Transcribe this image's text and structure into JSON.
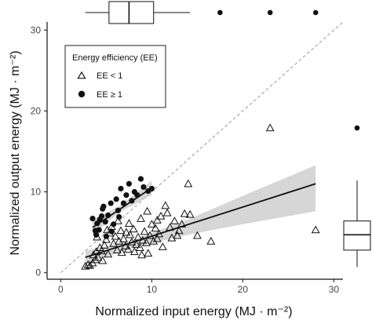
{
  "chart_data": {
    "type": "scatter",
    "xlabel": "Normalized input energy (MJ · m⁻²)",
    "ylabel": "Normalized output energy (MJ · m⁻²)",
    "xlim": [
      -1.5,
      31
    ],
    "ylim": [
      -0.8,
      31
    ],
    "x_ticks": [
      "0",
      "10",
      "20",
      "30"
    ],
    "y_ticks": [
      "0",
      "10",
      "20",
      "30"
    ],
    "grid": false,
    "reference_line": {
      "slope": 1,
      "intercept": 0,
      "style": "dashed"
    },
    "legend": {
      "title": "Energy efficiency (EE)",
      "placement": "top-left",
      "entries": [
        "EE < 1",
        "EE ≥ 1"
      ]
    },
    "series": [
      {
        "name": "EE < 1",
        "marker": "open-triangle",
        "points": [
          [
            2.7,
            0.8
          ],
          [
            3.0,
            1.0
          ],
          [
            3.2,
            0.9
          ],
          [
            3.5,
            1.2
          ],
          [
            3.8,
            1.6
          ],
          [
            3.6,
            2.2
          ],
          [
            3.9,
            2.6
          ],
          [
            4.1,
            1.9
          ],
          [
            4.3,
            3.1
          ],
          [
            4.0,
            4.4
          ],
          [
            4.5,
            2.7
          ],
          [
            4.8,
            3.4
          ],
          [
            5.0,
            4.1
          ],
          [
            5.2,
            2.3
          ],
          [
            5.4,
            4.9
          ],
          [
            5.6,
            5.7
          ],
          [
            5.8,
            3.6
          ],
          [
            6.0,
            4.5
          ],
          [
            6.2,
            2.8
          ],
          [
            6.4,
            3.9
          ],
          [
            6.6,
            5.2
          ],
          [
            6.7,
            2.5
          ],
          [
            6.9,
            4.2
          ],
          [
            7.1,
            3.3
          ],
          [
            7.2,
            5.0
          ],
          [
            7.4,
            2.9
          ],
          [
            7.6,
            4.7
          ],
          [
            7.8,
            3.8
          ],
          [
            8.0,
            5.4
          ],
          [
            8.1,
            2.6
          ],
          [
            8.3,
            3.5
          ],
          [
            8.5,
            4.4
          ],
          [
            8.7,
            3.1
          ],
          [
            8.9,
            2.2
          ],
          [
            9.0,
            4.0
          ],
          [
            9.2,
            5.1
          ],
          [
            9.4,
            3.7
          ],
          [
            9.6,
            2.4
          ],
          [
            9.8,
            4.6
          ],
          [
            10.0,
            6.0
          ],
          [
            10.2,
            3.9
          ],
          [
            10.4,
            5.5
          ],
          [
            10.6,
            6.5
          ],
          [
            10.8,
            4.8
          ],
          [
            11.0,
            7.0
          ],
          [
            11.2,
            3.2
          ],
          [
            11.5,
            8.3
          ],
          [
            11.7,
            7.4
          ],
          [
            12.0,
            5.6
          ],
          [
            12.2,
            4.3
          ],
          [
            12.5,
            6.4
          ],
          [
            12.8,
            4.6
          ],
          [
            13.0,
            5.2
          ],
          [
            13.3,
            6.0
          ],
          [
            13.6,
            7.3
          ],
          [
            14.0,
            11.0
          ],
          [
            14.2,
            7.2
          ],
          [
            15.0,
            4.6
          ],
          [
            16.5,
            3.9
          ],
          [
            23.0,
            17.9
          ],
          [
            28.0,
            5.3
          ],
          [
            9.5,
            7.6
          ],
          [
            7.5,
            6.1
          ],
          [
            6.3,
            6.4
          ],
          [
            5.1,
            5.3
          ],
          [
            8.8,
            6.7
          ],
          [
            10.6,
            4.2
          ],
          [
            4.6,
            1.5
          ]
        ]
      },
      {
        "name": "EE ≥ 1",
        "marker": "filled-circle",
        "points": [
          [
            3.5,
            6.7
          ],
          [
            3.8,
            5.2
          ],
          [
            3.9,
            4.7
          ],
          [
            4.0,
            6.1
          ],
          [
            4.3,
            6.6
          ],
          [
            4.5,
            7.0
          ],
          [
            4.7,
            8.2
          ],
          [
            4.9,
            6.3
          ],
          [
            5.2,
            7.1
          ],
          [
            5.5,
            8.6
          ],
          [
            5.8,
            6.0
          ],
          [
            6.1,
            9.1
          ],
          [
            6.3,
            7.7
          ],
          [
            6.6,
            10.4
          ],
          [
            6.9,
            8.6
          ],
          [
            7.2,
            9.6
          ],
          [
            7.5,
            11.0
          ],
          [
            7.8,
            8.9
          ],
          [
            8.1,
            10.0
          ],
          [
            8.4,
            9.6
          ],
          [
            8.8,
            11.6
          ],
          [
            9.1,
            10.6
          ],
          [
            9.6,
            10.1
          ],
          [
            10.0,
            10.4
          ],
          [
            4.2,
            5.3
          ],
          [
            5.0,
            4.5
          ],
          [
            6.4,
            6.9
          ],
          [
            5.6,
            5.1
          ],
          [
            4.6,
            7.9
          ]
        ]
      }
    ],
    "fits": [
      {
        "name": "EE < 1",
        "x": [
          2.7,
          28.0
        ],
        "y": [
          1.9,
          11.0
        ],
        "band": [
          [
            2.7,
            1.1,
            2.7
          ],
          [
            8,
            3.1,
            4.1
          ],
          [
            14,
            4.7,
            6.6
          ],
          [
            20,
            6.0,
            9.5
          ],
          [
            28,
            7.6,
            13.3
          ]
        ]
      },
      {
        "name": "EE ≥ 1",
        "x": [
          3.5,
          10.0
        ],
        "y": [
          5.6,
          10.5
        ],
        "band": [
          [
            3.5,
            4.7,
            6.5
          ],
          [
            6.5,
            7.5,
            8.3
          ],
          [
            10.0,
            9.6,
            11.4
          ]
        ]
      }
    ],
    "x_marginal_boxplot": {
      "q1": 5.3,
      "median": 7.5,
      "q3": 10.2,
      "whisker_low": 2.7,
      "whisker_high": 14.2,
      "outliers": [
        17.5,
        23.0,
        28.0
      ]
    },
    "y_marginal_boxplot": {
      "q1": 2.8,
      "median": 4.7,
      "q3": 6.4,
      "whisker_low": 0.7,
      "whisker_high": 11.4,
      "outliers": [
        17.9
      ]
    }
  }
}
